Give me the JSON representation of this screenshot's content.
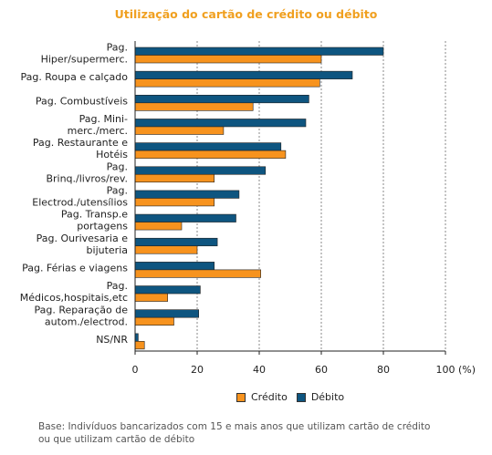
{
  "chart_data": {
    "type": "bar",
    "orientation": "horizontal",
    "title": "Utilização do cartão de crédito ou débito",
    "xlabel": "(%)",
    "xlim": [
      0,
      100
    ],
    "xticks": [
      "0",
      "20",
      "40",
      "60",
      "80",
      "100"
    ],
    "grid": "vertical dashed",
    "legend_position": "bottom",
    "categories": [
      [
        "Pag.",
        "Hiper/supermerc."
      ],
      [
        "Pag. Roupa e calçado"
      ],
      [
        "Pag. Combustíveis"
      ],
      [
        "Pag. Mini-",
        "merc./merc."
      ],
      [
        "Pag. Restaurante e",
        "Hotéis"
      ],
      [
        "Pag.",
        "Brinq./livros/rev."
      ],
      [
        "Pag.",
        "Electrod./utensílios"
      ],
      [
        "Pag. Transp.e",
        "portagens"
      ],
      [
        "Pag. Ourivesaria e",
        "bijuteria"
      ],
      [
        "Pag. Férias e viagens"
      ],
      [
        "Pag.",
        "Médicos,hospitais,etc"
      ],
      [
        "Pag. Reparação de",
        "autom./electrod."
      ],
      [
        "NS/NR"
      ]
    ],
    "series": [
      {
        "name": "Débito",
        "color": "#0e5580",
        "values": [
          80,
          70,
          56,
          55,
          47,
          42,
          33.5,
          32.5,
          26.5,
          25.5,
          21,
          20.5,
          1
        ]
      },
      {
        "name": "Crédito",
        "color": "#f7931e",
        "values": [
          60,
          59.5,
          38,
          28.5,
          48.5,
          25.5,
          25.5,
          15,
          20,
          40.5,
          10.5,
          12.5,
          3
        ]
      }
    ]
  },
  "legend": {
    "credito": "Crédito",
    "debito": "Débito"
  },
  "source": {
    "line1": "Base: Indivíduos bancarizados com 15 e mais anos que utilizam cartão de crédito",
    "line2": "ou que utilizam cartão de débito"
  }
}
